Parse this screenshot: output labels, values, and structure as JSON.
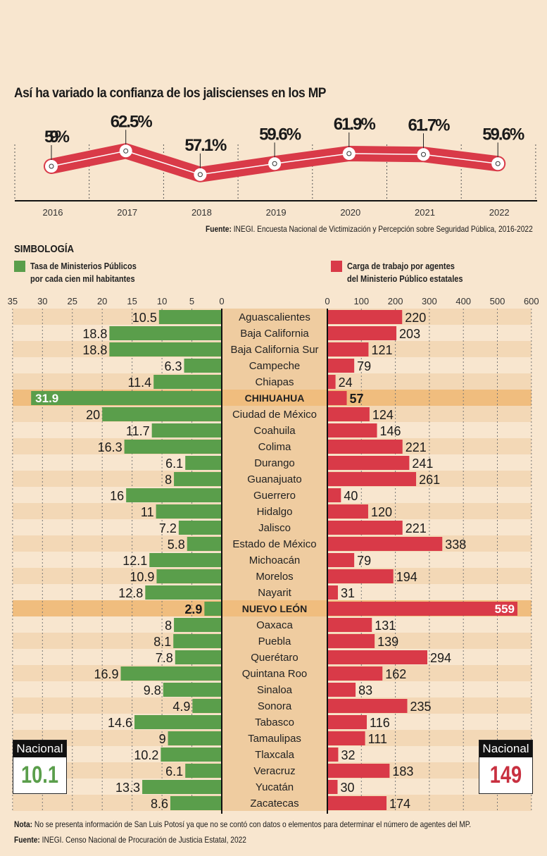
{
  "chart_data": [
    {
      "type": "line",
      "title": "Así ha variado la confianza de los jaliscienses en los MP",
      "categories": [
        "2016",
        "2017",
        "2018",
        "2019",
        "2020",
        "2021",
        "2022"
      ],
      "values": [
        59,
        62.5,
        57.1,
        59.6,
        61.9,
        61.7,
        59.6
      ],
      "labels": [
        "59%",
        "62.5%",
        "57.1%",
        "59.6%",
        "61.9%",
        "61.7%",
        "59.6%"
      ],
      "color": "#d93a48",
      "grid": true
    },
    {
      "type": "bar",
      "orientation": "horizontal-diverging",
      "categories": [
        "Aguascalientes",
        "Baja California",
        "Baja California Sur",
        "Campeche",
        "Chiapas",
        "CHIHUAHUA",
        "Ciudad de México",
        "Coahuila",
        "Colima",
        "Durango",
        "Guanajuato",
        "Guerrero",
        "Hidalgo",
        "Jalisco",
        "Estado de México",
        "Michoacán",
        "Morelos",
        "Nayarit",
        "NUEVO LEÓN",
        "Oaxaca",
        "Puebla",
        "Querétaro",
        "Quintana Roo",
        "Sinaloa",
        "Sonora",
        "Tabasco",
        "Tamaulipas",
        "Tlaxcala",
        "Veracruz",
        "Yucatán",
        "Zacatecas"
      ],
      "highlighted": [
        "CHIHUAHUA",
        "NUEVO LEÓN"
      ],
      "series": [
        {
          "name": "Tasa de Ministerios Públicos por cada cien mil habitantes",
          "color": "#5a9e4b",
          "xlim": [
            35,
            0
          ],
          "ticks": [
            "35",
            "30",
            "25",
            "20",
            "15",
            "10",
            "5",
            "0"
          ],
          "values": [
            10.5,
            18.8,
            18.8,
            6.3,
            11.4,
            31.9,
            20,
            11.7,
            16.3,
            6.1,
            8,
            16,
            11,
            7.2,
            5.8,
            12.1,
            10.9,
            12.8,
            2.9,
            8,
            8.1,
            7.8,
            16.9,
            9.8,
            4.9,
            14.6,
            9,
            10.2,
            6.1,
            13.3,
            8.6
          ]
        },
        {
          "name": "Carga de trabajo por agentes del Ministerio Público estatales",
          "color": "#d93a48",
          "xlim": [
            0,
            600
          ],
          "ticks": [
            "0",
            "100",
            "200",
            "300",
            "400",
            "500",
            "600"
          ],
          "values": [
            220,
            203,
            121,
            79,
            24,
            57,
            124,
            146,
            221,
            241,
            261,
            40,
            120,
            221,
            338,
            79,
            194,
            31,
            559,
            131,
            139,
            294,
            162,
            83,
            235,
            116,
            111,
            32,
            183,
            30,
            174
          ]
        }
      ]
    }
  ],
  "line_source_label": "Fuente:",
  "line_source": "INEGI. Encuesta Nacional de Victimización y Percepción sobre Seguridad Pública, 2016-2022",
  "legend_title": "SIMBOLOGÍA",
  "legend": {
    "green_l1": "Tasa de Ministerios Públicos",
    "green_l2": "por cada cien mil habitantes",
    "red_l1": "Carga de trabajo por agentes",
    "red_l2": "del Ministerio Público estatales"
  },
  "national": {
    "label": "Nacional",
    "green_value": "10.1",
    "red_value": "149"
  },
  "note_label": "Nota:",
  "note": "No se presenta información de San Luis Potosí ya que no se contó con datos o elementos para determinar el número de agentes del MP.",
  "source_label": "Fuente:",
  "source": "INEGI. Censo Nacional de Procuración de Justicia Estatal, 2022"
}
